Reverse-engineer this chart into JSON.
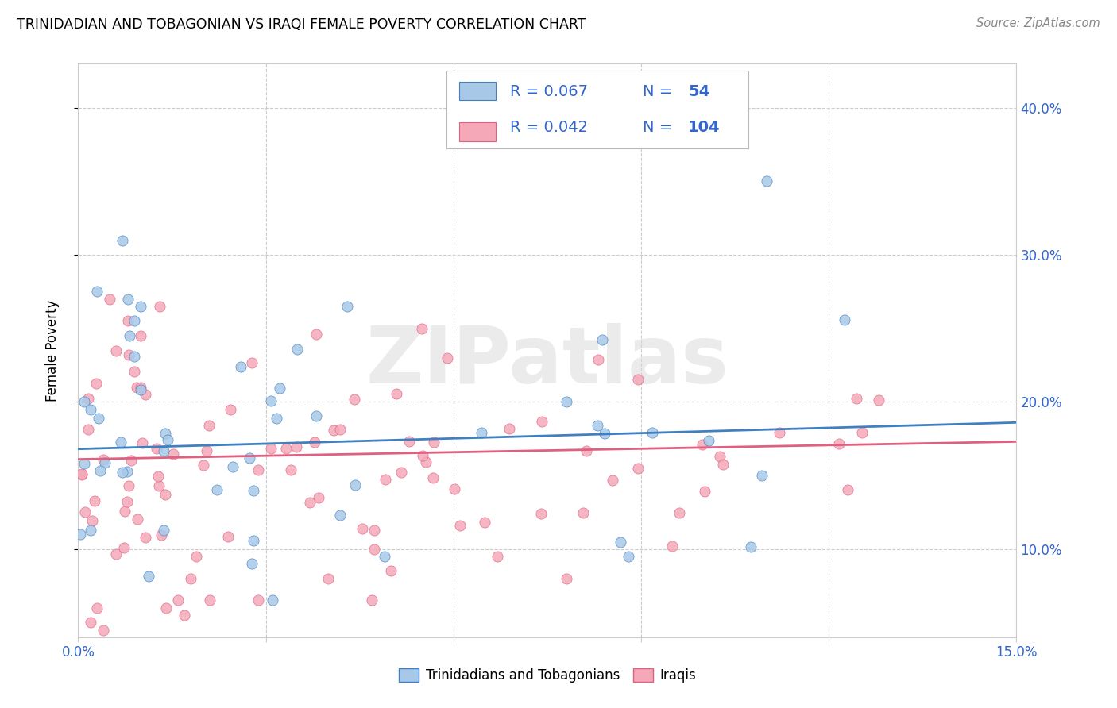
{
  "title": "TRINIDADIAN AND TOBAGONIAN VS IRAQI FEMALE POVERTY CORRELATION CHART",
  "source": "Source: ZipAtlas.com",
  "ylabel": "Female Poverty",
  "xlim": [
    0.0,
    0.15
  ],
  "ylim": [
    0.04,
    0.43
  ],
  "color_blue": "#a8c8e8",
  "color_pink": "#f4a8b8",
  "color_blue_line": "#4080c0",
  "color_pink_line": "#e06080",
  "color_blue_text": "#3366cc",
  "watermark_text": "ZIPatlas",
  "legend_blue_r": "R = 0.067",
  "legend_blue_n": "N =  54",
  "legend_pink_r": "R = 0.042",
  "legend_pink_n": "N = 104",
  "grid_color": "#cccccc",
  "axis_text_color": "#3366cc"
}
